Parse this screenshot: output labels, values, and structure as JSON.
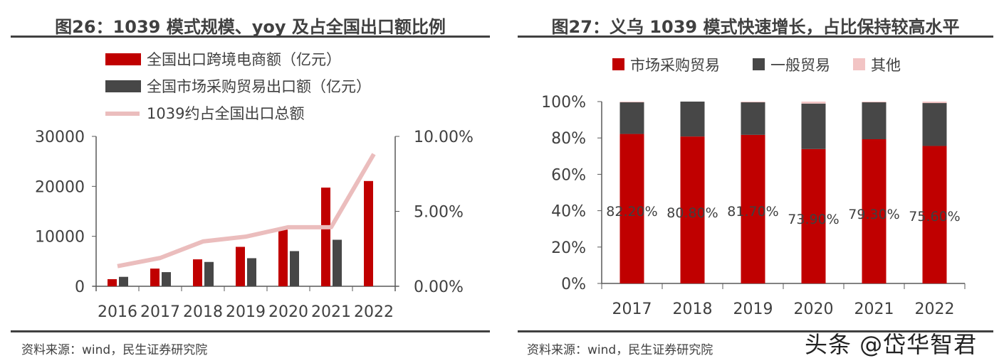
{
  "watermark": "头条 @岱华智君",
  "colors": {
    "red": "#C00000",
    "grey": "#474747",
    "pink": "#EBBDBD"
  },
  "chart_data": [
    {
      "type": "bar",
      "title": "图26：1039 模式规模、yoy 及占全国出口额比例",
      "source": "资料来源：wind，民生证券研究院",
      "categories": [
        "2016",
        "2017",
        "2018",
        "2019",
        "2020",
        "2021",
        "2022"
      ],
      "y_ticks": [
        "0",
        "10000",
        "20000",
        "30000"
      ],
      "ylim": [
        0,
        30000
      ],
      "y2_ticks": [
        "0.00%",
        "5.00%",
        "10.00%"
      ],
      "y2lim": [
        0,
        10
      ],
      "legend_placement": "top",
      "series": [
        {
          "name": "全国出口跨境电商额（亿元）",
          "type": "bar",
          "axis": "left",
          "color": "#C00000",
          "values": [
            1420,
            3540,
            5390,
            7890,
            11340,
            19750,
            21070
          ]
        },
        {
          "name": "全国市场采购贸易出口额（亿元）",
          "type": "bar",
          "axis": "left",
          "color": "#474747",
          "values": [
            1890,
            2830,
            4870,
            5620,
            7040,
            9310,
            null
          ]
        },
        {
          "name": "1039约占全国出口总额",
          "type": "line",
          "axis": "right",
          "color": "#EBBDBD",
          "values": [
            1.34,
            1.89,
            2.99,
            3.31,
            3.94,
            3.94,
            8.82
          ]
        }
      ]
    },
    {
      "type": "bar",
      "stacked": true,
      "title": "图27：义乌 1039 模式快速增长，占比保持较高水平",
      "source": "资料来源：wind，民生证券研究院",
      "categories": [
        "2017",
        "2018",
        "2019",
        "2020",
        "2021",
        "2022"
      ],
      "y_ticks": [
        "0%",
        "20%",
        "40%",
        "60%",
        "80%",
        "100%"
      ],
      "ylim": [
        0,
        100
      ],
      "legend_placement": "top",
      "series": [
        {
          "name": "市场采购贸易",
          "color": "#C00000",
          "values": [
            82.2,
            80.8,
            81.7,
            73.9,
            79.3,
            75.6
          ],
          "labels": [
            "82.20%",
            "80.80%",
            "81.70%",
            "73.90%",
            "79.30%",
            "75.60%"
          ]
        },
        {
          "name": "一般贸易",
          "color": "#474747",
          "values": [
            17.4,
            19.2,
            17.9,
            25.0,
            20.3,
            23.6
          ]
        },
        {
          "name": "其他",
          "color": "#F2C4C4",
          "values": [
            0.4,
            0.0,
            0.4,
            1.1,
            0.4,
            0.8
          ]
        }
      ]
    }
  ]
}
